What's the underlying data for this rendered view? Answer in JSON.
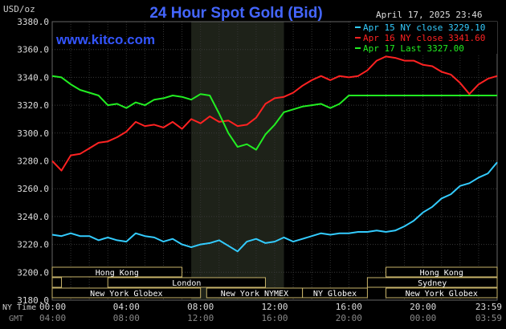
{
  "header": {
    "unit": "USD/oz",
    "title": "24 Hour Spot Gold (Bid)",
    "datetime": "April 17, 2025 23:46",
    "watermark": "www.kitco.com"
  },
  "legend": [
    {
      "label": "Apr 15 NY close 3229.10",
      "color": "#33ccff"
    },
    {
      "label": "Apr 16 NY close 3341.60",
      "color": "#ff2222"
    },
    {
      "label": "Apr 17 Last 3327.00",
      "color": "#22ee22"
    }
  ],
  "axis_labels": {
    "ny_time": "NY Time",
    "gmt": "GMT"
  },
  "market_sessions": [
    {
      "label": "Hong Kong",
      "start": 0,
      "end": 7.0,
      "row": 0
    },
    {
      "label": "Hong Kong",
      "start": 18.0,
      "end": 24.0,
      "row": 0
    },
    {
      "label": "London",
      "start": 0,
      "end": 0.5,
      "row": 1
    },
    {
      "label": "London",
      "start": 3.0,
      "end": 11.5,
      "row": 1
    },
    {
      "label": "Sydney",
      "start": 17.0,
      "end": 24.0,
      "row": 1
    },
    {
      "label": "New York Globex",
      "start": 0,
      "end": 8.0,
      "row": 2
    },
    {
      "label": "New York NYMEX",
      "start": 8.33,
      "end": 13.5,
      "row": 2
    },
    {
      "label": "NY Globex",
      "start": 13.5,
      "end": 17.0,
      "row": 2
    },
    {
      "label": "New York Globex",
      "start": 18.0,
      "end": 24.0,
      "row": 2
    }
  ],
  "chart_data": {
    "type": "line",
    "title": "24 Hour Spot Gold (Bid)",
    "ylabel": "USD/oz",
    "ylim": [
      3180,
      3380
    ],
    "xlim": [
      0,
      24
    ],
    "y_ticks": [
      "3380.0",
      "3360.0",
      "3340.0",
      "3320.0",
      "3300.0",
      "3280.0",
      "3260.0",
      "3240.0",
      "3220.0",
      "3200.0",
      "3180.0"
    ],
    "x_ticks_ny": [
      "00:00",
      "04:00",
      "08:00",
      "12:00",
      "16:00",
      "20:00",
      "23:59"
    ],
    "x_ticks_gmt": [
      "04:00",
      "08:00",
      "12:00",
      "16:00",
      "20:00",
      "00:00",
      "03:59"
    ],
    "shaded_region_hours": [
      7.5,
      12.5
    ],
    "grid": true,
    "series": [
      {
        "name": "Apr 15 NY close 3229.10",
        "color": "#33ccff",
        "x": [
          0,
          0.5,
          1,
          1.5,
          2,
          2.5,
          3,
          3.5,
          4,
          4.5,
          5,
          5.5,
          6,
          6.5,
          7,
          7.5,
          8,
          8.5,
          9,
          9.5,
          10,
          10.5,
          11,
          11.5,
          12,
          12.5,
          13,
          13.5,
          14,
          14.5,
          15,
          15.5,
          16,
          16.5,
          17,
          17.5,
          18,
          18.5,
          19,
          19.5,
          20,
          20.5,
          21,
          21.5,
          22,
          22.5,
          23,
          23.5,
          24
        ],
        "values": [
          3227,
          3226,
          3228,
          3226,
          3226,
          3223,
          3225,
          3223,
          3222,
          3228,
          3226,
          3225,
          3222,
          3224,
          3220,
          3218,
          3220,
          3221,
          3223,
          3219,
          3215,
          3222,
          3224,
          3221,
          3222,
          3225,
          3222,
          3224,
          3226,
          3228,
          3227,
          3228,
          3228,
          3229,
          3229,
          3230,
          3229,
          3230,
          3233,
          3237,
          3243,
          3247,
          3253,
          3256,
          3262,
          3264,
          3268,
          3271,
          3279
        ]
      },
      {
        "name": "Apr 16 NY close 3341.60",
        "color": "#ff2222",
        "x": [
          0,
          0.5,
          1,
          1.5,
          2,
          2.5,
          3,
          3.5,
          4,
          4.5,
          5,
          5.5,
          6,
          6.5,
          7,
          7.5,
          8,
          8.5,
          9,
          9.5,
          10,
          10.5,
          11,
          11.5,
          12,
          12.5,
          13,
          13.5,
          14,
          14.5,
          15,
          15.5,
          16,
          16.5,
          17,
          17.5,
          18,
          18.5,
          19,
          19.5,
          20,
          20.5,
          21,
          21.5,
          22,
          22.5,
          23,
          23.5,
          24
        ],
        "values": [
          3280,
          3273,
          3284,
          3285,
          3289,
          3293,
          3294,
          3297,
          3301,
          3308,
          3305,
          3306,
          3304,
          3308,
          3303,
          3310,
          3307,
          3312,
          3308,
          3309,
          3305,
          3306,
          3311,
          3321,
          3325,
          3326,
          3329,
          3334,
          3338,
          3341,
          3338,
          3341,
          3340,
          3341,
          3345,
          3352,
          3355,
          3354,
          3352,
          3352,
          3349,
          3348,
          3344,
          3342,
          3336,
          3328,
          3335,
          3339,
          3341
        ]
      },
      {
        "name": "Apr 17 Last 3327.00",
        "color": "#22ee22",
        "x": [
          0,
          0.5,
          1,
          1.5,
          2,
          2.5,
          3,
          3.5,
          4,
          4.5,
          5,
          5.5,
          6,
          6.5,
          7,
          7.5,
          8,
          8.5,
          9,
          9.5,
          10,
          10.5,
          11,
          11.5,
          12,
          12.5,
          13,
          13.5,
          14,
          14.5,
          15,
          15.5,
          16,
          16.5,
          17,
          17.5,
          18,
          18.5,
          19,
          19.5,
          20,
          20.5,
          21,
          21.5,
          22,
          22.5,
          23,
          23.5,
          24
        ],
        "values": [
          3341,
          3340,
          3335,
          3331,
          3329,
          3327,
          3320,
          3321,
          3318,
          3322,
          3320,
          3324,
          3325,
          3327,
          3326,
          3324,
          3328,
          3327,
          3314,
          3300,
          3290,
          3292,
          3288,
          3299,
          3306,
          3315,
          3317,
          3319,
          3320,
          3321,
          3318,
          3321,
          3327,
          3327,
          3327,
          3327,
          3327,
          3327,
          3327,
          3327,
          3327,
          3327,
          3327,
          3327,
          3327,
          3327,
          3327,
          3327,
          3327
        ]
      }
    ]
  }
}
